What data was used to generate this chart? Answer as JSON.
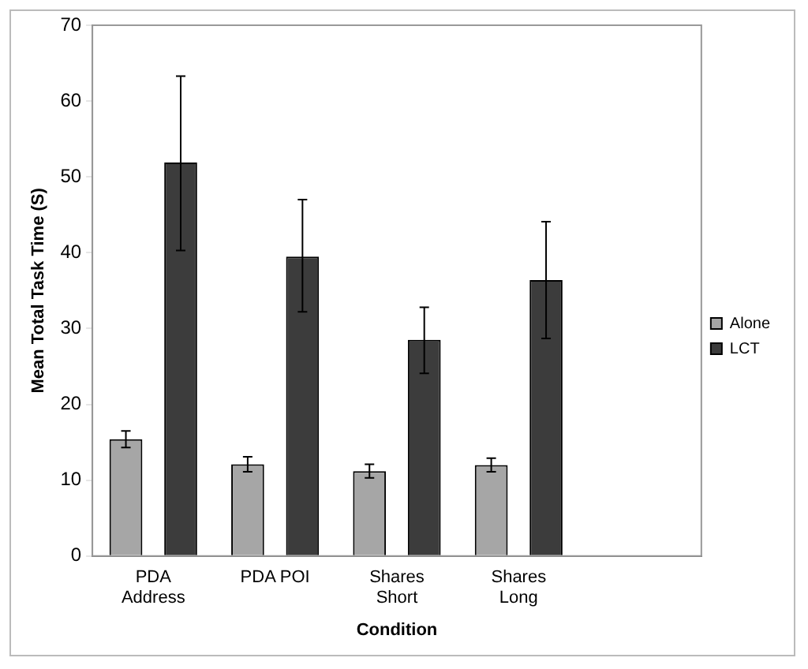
{
  "chart_data": {
    "type": "bar",
    "xlabel": "Condition",
    "ylabel": "Mean Total Task Time (S)",
    "categories": [
      [
        "PDA",
        "Address"
      ],
      [
        "PDA POI"
      ],
      [
        "Shares",
        "Short"
      ],
      [
        "Shares",
        "Long"
      ],
      null
    ],
    "series": [
      {
        "name": "Alone",
        "color": "#a6a6a6",
        "values": [
          15.4,
          12.1,
          11.2,
          12.0,
          null
        ],
        "errors": [
          1.1,
          1,
          0.9,
          0.9,
          null
        ]
      },
      {
        "name": "LCT",
        "color": "#3c3c3c",
        "values": [
          51.9,
          39.5,
          28.5,
          36.4,
          null
        ],
        "errors": [
          [
            40.3,
            63.3
          ],
          [
            32.2,
            47.0
          ],
          [
            24.1,
            32.8
          ],
          [
            28.7,
            44.1
          ],
          null
        ]
      }
    ],
    "ylim": [
      0,
      70
    ],
    "yticks": [
      0,
      10,
      20,
      30,
      40,
      50,
      60,
      70
    ],
    "grid": false,
    "legend": "right"
  }
}
